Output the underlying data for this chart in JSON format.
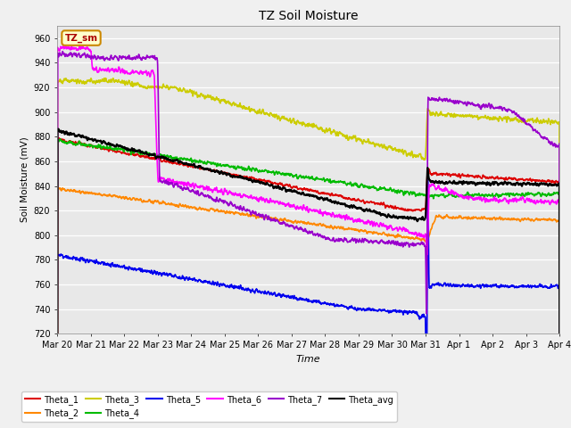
{
  "title": "TZ Soil Moisture",
  "ylabel": "Soil Moisture (mV)",
  "xlabel": "Time",
  "ylim": [
    720,
    970
  ],
  "yticks": [
    720,
    740,
    760,
    780,
    800,
    820,
    840,
    860,
    880,
    900,
    920,
    940,
    960
  ],
  "fig_bg": "#f0f0f0",
  "plot_bg": "#e8e8e8",
  "label_box_text": "TZ_sm",
  "label_box_bg": "#ffffcc",
  "label_box_edge": "#cc8800",
  "grid_color": "#ffffff",
  "series": {
    "Theta_1": {
      "color": "#dd0000",
      "lw": 1.2
    },
    "Theta_2": {
      "color": "#ff8800",
      "lw": 1.2
    },
    "Theta_3": {
      "color": "#cccc00",
      "lw": 1.2
    },
    "Theta_4": {
      "color": "#00bb00",
      "lw": 1.2
    },
    "Theta_5": {
      "color": "#0000ee",
      "lw": 1.2
    },
    "Theta_6": {
      "color": "#ff00ff",
      "lw": 1.2
    },
    "Theta_7": {
      "color": "#9900cc",
      "lw": 1.2
    },
    "Theta_avg": {
      "color": "#000000",
      "lw": 1.5
    }
  },
  "xtick_labels": [
    "Mar 20",
    "Mar 21",
    "Mar 22",
    "Mar 23",
    "Mar 24",
    "Mar 25",
    "Mar 26",
    "Mar 27",
    "Mar 28",
    "Mar 29",
    "Mar 30",
    "Mar 31",
    "Apr 1",
    "Apr 2",
    "Apr 3",
    "Apr 4"
  ],
  "legend_order": [
    "Theta_1",
    "Theta_2",
    "Theta_3",
    "Theta_4",
    "Theta_5",
    "Theta_6",
    "Theta_7",
    "Theta_avg"
  ]
}
